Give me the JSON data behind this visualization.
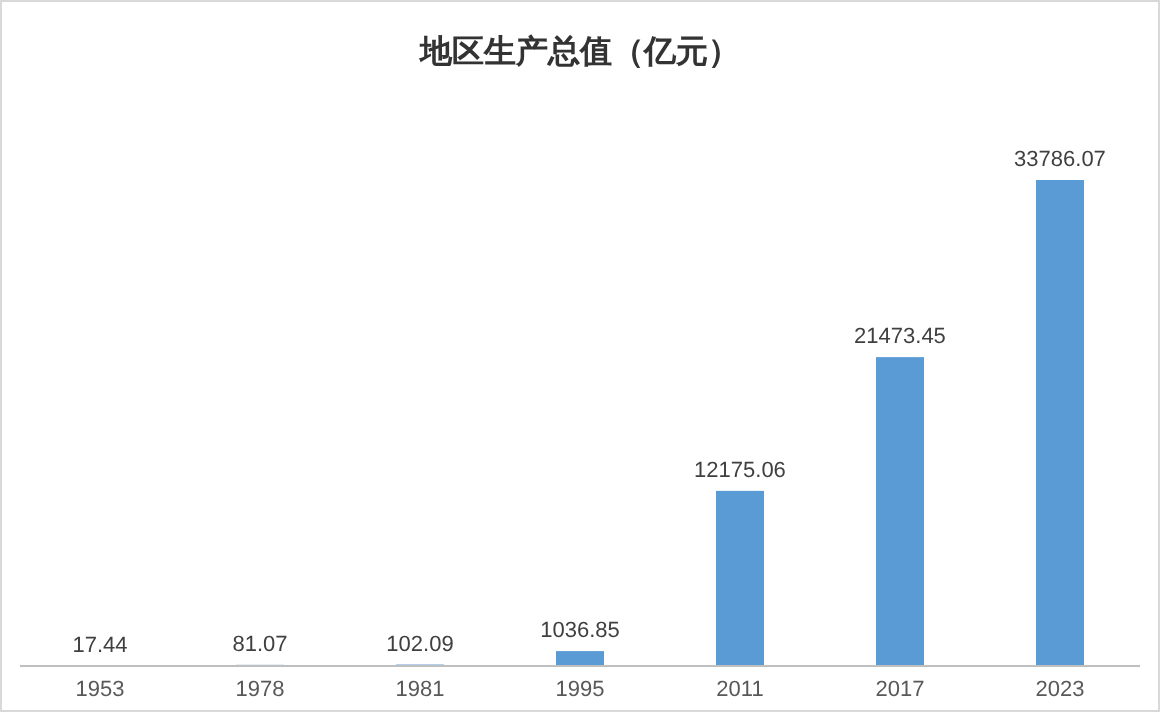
{
  "chart_data": {
    "type": "bar",
    "title": "地区生产总值（亿元）",
    "categories": [
      "1953",
      "1978",
      "1981",
      "1995",
      "2011",
      "2017",
      "2023"
    ],
    "values": [
      17.44,
      81.07,
      102.09,
      1036.85,
      12175.06,
      21473.45,
      33786.07
    ],
    "color": "#5b9bd5",
    "data_labels": true
  }
}
